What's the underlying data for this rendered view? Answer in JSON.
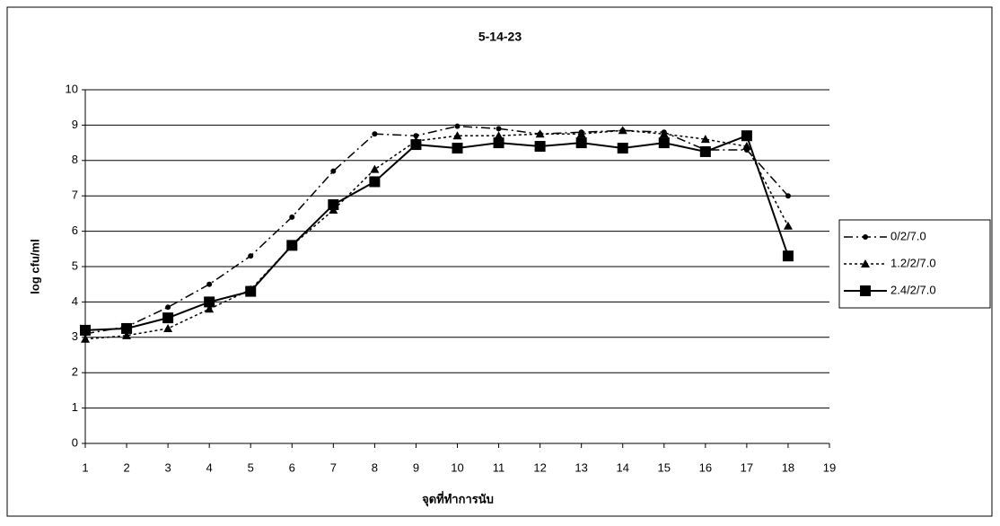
{
  "chart_data": {
    "type": "line",
    "title": "5-14-23",
    "x_label": "จุดที่ทำการนับ",
    "y_label": "log cfu/ml",
    "x": [
      1,
      2,
      3,
      4,
      5,
      6,
      7,
      8,
      9,
      10,
      11,
      12,
      13,
      14,
      15,
      16,
      17,
      18
    ],
    "xlim": [
      1,
      19
    ],
    "xticks": [
      1,
      2,
      3,
      4,
      5,
      6,
      7,
      8,
      9,
      10,
      11,
      12,
      13,
      14,
      15,
      16,
      17,
      18,
      19
    ],
    "ylim": [
      0,
      10
    ],
    "yticks": [
      0,
      1,
      2,
      3,
      4,
      5,
      6,
      7,
      8,
      9,
      10
    ],
    "grid": true,
    "legend": "right",
    "series": [
      {
        "name": "0/2/7.0",
        "color": "#000000",
        "marker": "circle",
        "dash": "dashdot",
        "values": [
          3.1,
          3.3,
          3.85,
          4.5,
          5.3,
          6.4,
          7.7,
          8.75,
          8.7,
          8.97,
          8.9,
          8.75,
          8.8,
          8.85,
          8.8,
          8.3,
          8.3,
          7.0
        ]
      },
      {
        "name": "1.2/2/7.0",
        "color": "#000000",
        "marker": "triangle",
        "dash": "dotted",
        "values": [
          2.95,
          3.05,
          3.25,
          3.8,
          4.35,
          5.6,
          6.6,
          7.75,
          8.55,
          8.7,
          8.7,
          8.75,
          8.75,
          8.85,
          8.75,
          8.6,
          8.4,
          6.15
        ]
      },
      {
        "name": "2.4/2/7.0",
        "color": "#000000",
        "marker": "square",
        "dash": "solid",
        "values": [
          3.2,
          3.25,
          3.55,
          4.0,
          4.3,
          5.6,
          6.75,
          7.4,
          8.45,
          8.35,
          8.5,
          8.4,
          8.5,
          8.35,
          8.5,
          8.25,
          8.7,
          5.3
        ]
      }
    ]
  }
}
